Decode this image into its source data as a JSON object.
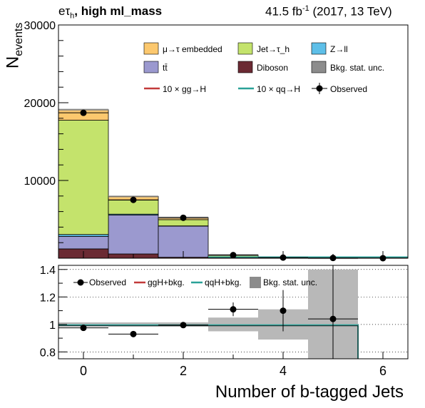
{
  "header": {
    "channel_label_pre": "eτ",
    "channel_label_sub": "h",
    "channel_label_post": ", high ml_mass",
    "lumi_pre": "41.5 fb",
    "lumi_sup": "-1",
    "lumi_post": " (2017, 13 TeV)"
  },
  "chart_data": [
    {
      "type": "bar",
      "stacked": true,
      "x": [
        0,
        1,
        2,
        3,
        4,
        5,
        6
      ],
      "xlim": [
        -0.5,
        6.5
      ],
      "ylim": [
        0,
        30000
      ],
      "ylabel_main": "N",
      "ylabel_sub": "events",
      "yticks": [
        "10000",
        "20000",
        "30000"
      ],
      "series": [
        {
          "name": "Diboson",
          "color": "#6b2a33",
          "values": [
            1200,
            550,
            120,
            10,
            0,
            0,
            0
          ]
        },
        {
          "name": "tt̄",
          "color": "#9b99cf",
          "values": [
            1600,
            5000,
            4000,
            150,
            30,
            10,
            0
          ]
        },
        {
          "name": "Z→ll",
          "color": "#5ebfe8",
          "values": [
            250,
            120,
            40,
            10,
            0,
            0,
            0
          ]
        },
        {
          "name": "Jet→τ_h",
          "color": "#c4e36c",
          "values": [
            14700,
            1800,
            800,
            200,
            50,
            20,
            0
          ]
        },
        {
          "name": "μ→τ embedded",
          "color": "#fcc86e",
          "values": [
            1350,
            480,
            270,
            40,
            10,
            0,
            0
          ]
        }
      ],
      "observed": {
        "name": "Observed",
        "values": [
          18700,
          7500,
          5200,
          400,
          80,
          30,
          5
        ]
      },
      "signals": [
        {
          "name": "10 × gg→H",
          "color": "#c23a3a"
        },
        {
          "name": "10 × qq→H",
          "color": "#2aa198"
        }
      ],
      "uncertainty_label": "Bkg. stat. unc.",
      "legend_position": "top-right"
    },
    {
      "type": "scatter",
      "xlim": [
        -0.5,
        6.5
      ],
      "ylim": [
        0.75,
        1.43
      ],
      "yticks": [
        "0.8",
        "1",
        "1.2",
        "1.4"
      ],
      "xticks": [
        "0",
        "2",
        "4",
        "6"
      ],
      "xlabel": "Number of b-tagged Jets",
      "ratio_points": [
        {
          "x": 0,
          "y": 0.975,
          "xerr": 0.5,
          "yerr": 0.008
        },
        {
          "x": 1,
          "y": 0.93,
          "xerr": 0.5,
          "yerr": 0.012
        },
        {
          "x": 2,
          "y": 0.995,
          "xerr": 0.5,
          "yerr": 0.015
        },
        {
          "x": 3,
          "y": 1.11,
          "xerr": 0.5,
          "yerr": 0.05
        },
        {
          "x": 4,
          "y": 1.1,
          "xerr": 0,
          "yerr": 0.15
        },
        {
          "x": 5,
          "y": 1.04,
          "xerr": 0.5,
          "yerr": 0.45
        }
      ],
      "unc_band": [
        {
          "x0": -0.5,
          "x1": 2.5,
          "lo": 0.985,
          "hi": 1.015
        },
        {
          "x0": 2.5,
          "x1": 3.5,
          "lo": 0.95,
          "hi": 1.05
        },
        {
          "x0": 3.5,
          "x1": 4.5,
          "lo": 0.89,
          "hi": 1.11
        },
        {
          "x0": 4.5,
          "x1": 5.5,
          "lo": 0.75,
          "hi": 1.4
        }
      ],
      "legend": [
        "Observed",
        "ggH+bkg.",
        "qqH+bkg.",
        "Bkg. stat. unc."
      ]
    }
  ]
}
